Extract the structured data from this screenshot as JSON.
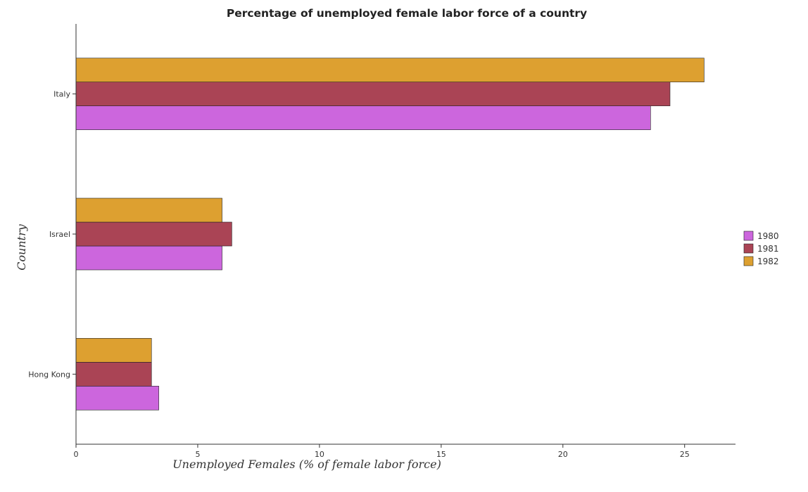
{
  "chart_data": {
    "type": "bar",
    "orientation": "horizontal",
    "title": "Percentage of unemployed female labor force of a country",
    "xlabel": "Unemployed Females (% of female labor force)",
    "ylabel": "Country",
    "categories": [
      "Hong Kong",
      "Israel",
      "Italy"
    ],
    "series": [
      {
        "name": "1980",
        "color": "#cc66dd",
        "values": [
          3.4,
          6.0,
          23.6
        ]
      },
      {
        "name": "1981",
        "color": "#aa4455",
        "values": [
          3.1,
          6.4,
          24.4
        ]
      },
      {
        "name": "1982",
        "color": "#dda030",
        "values": [
          3.1,
          6.0,
          25.8
        ]
      }
    ],
    "xlim": [
      0,
      27.09
    ],
    "xticks": [
      0,
      5,
      10,
      15,
      20,
      25
    ],
    "xtick_labels": [
      "0",
      "5",
      "10",
      "15",
      "20",
      "25"
    ],
    "grid": false,
    "legend_position": "right"
  }
}
